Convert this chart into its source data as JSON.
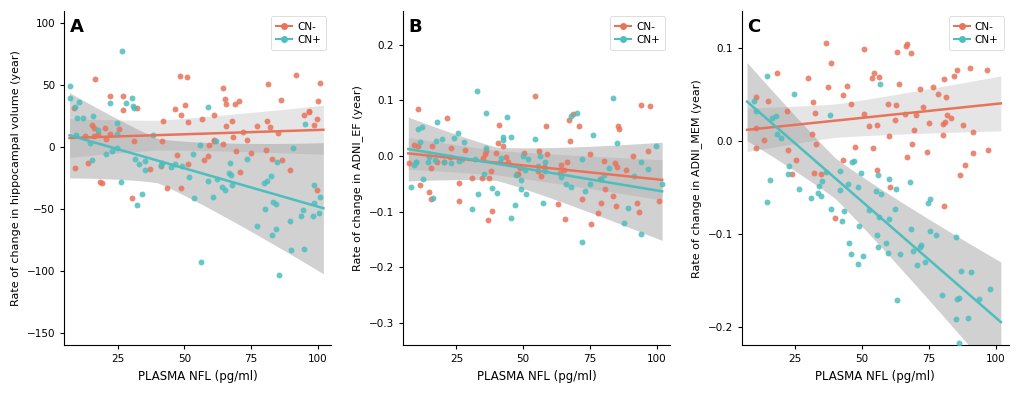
{
  "color_cn_minus": "#E8735A",
  "color_cn_plus": "#4DBDBD",
  "background": "#FFFFFF",
  "panel_labels": [
    "A",
    "B",
    "C"
  ],
  "xlabel": "PLASMA NFL (pg/ml)",
  "ylabels": [
    "Rate of change in hippocampal volume (year)",
    "Rate of change in ADNI_EF (year)",
    "Rate of change in ADNI_MEM (year)"
  ],
  "legend_labels": [
    "CN-",
    "CN+"
  ],
  "xlim": [
    5,
    105
  ],
  "xticks": [
    25,
    50,
    75,
    100
  ],
  "panels": [
    {
      "slope_minus": 0.07,
      "int_minus": 7.0,
      "noise_minus": 25,
      "slope_plus": -0.62,
      "int_plus": 14.0,
      "noise_plus": 30,
      "ci_minus_base": 12,
      "ci_plus_base": 18,
      "ci_minus_growth": 0.5,
      "ci_plus_growth": 1.5,
      "ylim": [
        -160,
        110
      ],
      "yticks": [
        -150,
        -100,
        -50,
        0,
        50,
        100
      ]
    },
    {
      "slope_minus": -0.0005,
      "int_minus": 0.008,
      "noise_minus": 0.05,
      "slope_plus": -0.0008,
      "int_plus": 0.018,
      "noise_plus": 0.055,
      "ci_minus_base": 0.022,
      "ci_plus_base": 0.03,
      "ci_minus_growth": 0.5,
      "ci_plus_growth": 1.5,
      "ylim": [
        -0.34,
        0.26
      ],
      "yticks": [
        -0.3,
        -0.2,
        -0.1,
        0.0,
        0.1,
        0.2
      ]
    },
    {
      "slope_minus": 0.0003,
      "int_minus": 0.01,
      "noise_minus": 0.04,
      "slope_plus": -0.0025,
      "int_plus": 0.06,
      "noise_plus": 0.045,
      "ci_minus_base": 0.018,
      "ci_plus_base": 0.022,
      "ci_minus_growth": 0.5,
      "ci_plus_growth": 1.5,
      "ylim": [
        -0.22,
        0.14
      ],
      "yticks": [
        -0.2,
        -0.1,
        0.0,
        0.1
      ]
    }
  ]
}
